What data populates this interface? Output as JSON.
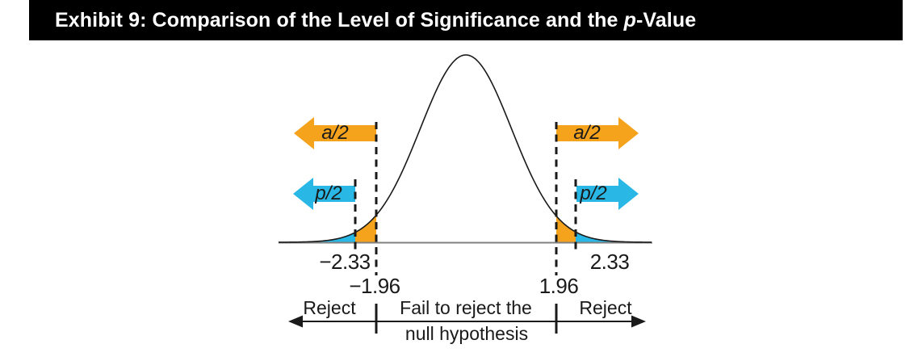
{
  "header": {
    "prefix": "Exhibit 9: Comparison of the Level of Significance and the ",
    "italic_term": "p",
    "suffix": "-Value"
  },
  "figure": {
    "alpha_half_label": "a/2",
    "p_half_label": "p/2",
    "tick_labels": {
      "neg_test": "−2.33",
      "neg_crit": "−1.96",
      "pos_crit": "1.96",
      "pos_test": "2.33"
    },
    "decision": {
      "reject_left": "Reject",
      "fail_line1": "Fail to reject the",
      "fail_line2": "null hypothesis",
      "reject_right": "Reject"
    }
  },
  "colors": {
    "significance_orange": "#F5A21C",
    "p_value_cyan": "#29B8E5",
    "axis_gray": "#808080",
    "curve_black": "#1a1a1a",
    "title_bg": "#000000",
    "title_fg": "#FFFFFF"
  },
  "chart_data": {
    "type": "area",
    "title": "Exhibit 9: Comparison of the Level of Significance and the p-Value",
    "curve": "standard normal probability density, mean 0",
    "x_ticks": [
      -2.33,
      -1.96,
      1.96,
      2.33
    ],
    "significance_level": {
      "label": "a/2",
      "critical_values": [
        -1.96,
        1.96
      ],
      "arrow_direction": "outward tails",
      "color": "#F5A21C"
    },
    "p_value": {
      "label": "p/2",
      "test_statistic_values": [
        -2.33,
        2.33
      ],
      "arrow_direction": "outward tails",
      "color": "#29B8E5"
    },
    "shaded_regions": [
      {
        "range": "x < -2.33",
        "fill": "#29B8E5"
      },
      {
        "range": "-2.33 <= x < -1.96",
        "fill": "#F5A21C"
      },
      {
        "range": "1.96 < x <= 2.33",
        "fill": "#F5A21C"
      },
      {
        "range": "x > 2.33",
        "fill": "#29B8E5"
      }
    ],
    "decision_axis": {
      "left_zone": "Reject",
      "middle_zone": "Fail to reject the null hypothesis",
      "right_zone": "Reject",
      "zone_boundaries": [
        -1.96,
        1.96
      ]
    },
    "legend_position": "none",
    "grid": false
  }
}
